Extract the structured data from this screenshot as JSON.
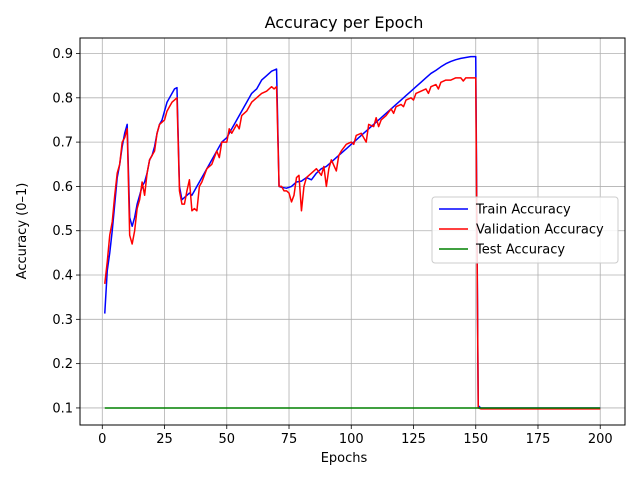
{
  "chart_data": {
    "type": "line",
    "title": "Accuracy per Epoch",
    "xlabel": "Epochs",
    "ylabel": "Accuracy (0–1)",
    "xlim": [
      -8.95,
      209.95
    ],
    "ylim": [
      0.0615,
      0.935
    ],
    "xticks": [
      0,
      25,
      50,
      75,
      100,
      125,
      150,
      175,
      200
    ],
    "yticks": [
      0.1,
      0.2,
      0.3,
      0.4,
      0.5,
      0.6,
      0.7,
      0.8,
      0.9
    ],
    "grid": true,
    "legend_position": "center-right",
    "series": [
      {
        "name": "Train Accuracy",
        "color": "#0000ff",
        "points": [
          [
            1,
            0.313
          ],
          [
            2,
            0.41
          ],
          [
            3,
            0.45
          ],
          [
            4,
            0.5
          ],
          [
            5,
            0.56
          ],
          [
            6,
            0.62
          ],
          [
            7,
            0.65
          ],
          [
            8,
            0.69
          ],
          [
            9,
            0.72
          ],
          [
            10,
            0.74
          ],
          [
            11,
            0.53
          ],
          [
            12,
            0.51
          ],
          [
            13,
            0.53
          ],
          [
            14,
            0.56
          ],
          [
            15,
            0.58
          ],
          [
            16,
            0.6
          ],
          [
            17,
            0.61
          ],
          [
            18,
            0.63
          ],
          [
            19,
            0.66
          ],
          [
            20,
            0.67
          ],
          [
            21,
            0.69
          ],
          [
            22,
            0.72
          ],
          [
            23,
            0.74
          ],
          [
            24,
            0.75
          ],
          [
            25,
            0.77
          ],
          [
            26,
            0.79
          ],
          [
            27,
            0.8
          ],
          [
            28,
            0.81
          ],
          [
            29,
            0.82
          ],
          [
            30,
            0.823
          ],
          [
            31,
            0.6
          ],
          [
            32,
            0.57
          ],
          [
            33,
            0.575
          ],
          [
            34,
            0.58
          ],
          [
            35,
            0.585
          ],
          [
            36,
            0.58
          ],
          [
            37,
            0.59
          ],
          [
            38,
            0.6
          ],
          [
            39,
            0.61
          ],
          [
            40,
            0.62
          ],
          [
            42,
            0.64
          ],
          [
            44,
            0.66
          ],
          [
            46,
            0.68
          ],
          [
            48,
            0.7
          ],
          [
            50,
            0.71
          ],
          [
            52,
            0.73
          ],
          [
            54,
            0.75
          ],
          [
            56,
            0.77
          ],
          [
            58,
            0.79
          ],
          [
            60,
            0.81
          ],
          [
            62,
            0.82
          ],
          [
            64,
            0.84
          ],
          [
            66,
            0.85
          ],
          [
            68,
            0.86
          ],
          [
            70,
            0.865
          ],
          [
            71,
            0.6
          ],
          [
            72,
            0.598
          ],
          [
            74,
            0.596
          ],
          [
            76,
            0.6
          ],
          [
            78,
            0.61
          ],
          [
            80,
            0.612
          ],
          [
            82,
            0.62
          ],
          [
            84,
            0.615
          ],
          [
            86,
            0.63
          ],
          [
            88,
            0.64
          ],
          [
            90,
            0.645
          ],
          [
            92,
            0.655
          ],
          [
            94,
            0.665
          ],
          [
            96,
            0.675
          ],
          [
            98,
            0.685
          ],
          [
            100,
            0.695
          ],
          [
            102,
            0.705
          ],
          [
            104,
            0.715
          ],
          [
            106,
            0.725
          ],
          [
            108,
            0.735
          ],
          [
            110,
            0.745
          ],
          [
            112,
            0.755
          ],
          [
            114,
            0.765
          ],
          [
            116,
            0.775
          ],
          [
            118,
            0.785
          ],
          [
            120,
            0.795
          ],
          [
            122,
            0.805
          ],
          [
            124,
            0.815
          ],
          [
            126,
            0.825
          ],
          [
            128,
            0.835
          ],
          [
            130,
            0.845
          ],
          [
            132,
            0.855
          ],
          [
            134,
            0.862
          ],
          [
            136,
            0.87
          ],
          [
            138,
            0.877
          ],
          [
            140,
            0.882
          ],
          [
            142,
            0.886
          ],
          [
            144,
            0.889
          ],
          [
            146,
            0.891
          ],
          [
            148,
            0.893
          ],
          [
            150,
            0.893
          ],
          [
            151,
            0.105
          ],
          [
            152,
            0.1
          ],
          [
            200,
            0.1
          ]
        ]
      },
      {
        "name": "Validation Accuracy",
        "color": "#ff0000",
        "points": [
          [
            1,
            0.38
          ],
          [
            2,
            0.43
          ],
          [
            3,
            0.49
          ],
          [
            4,
            0.52
          ],
          [
            5,
            0.58
          ],
          [
            6,
            0.63
          ],
          [
            7,
            0.65
          ],
          [
            8,
            0.7
          ],
          [
            9,
            0.71
          ],
          [
            10,
            0.73
          ],
          [
            11,
            0.49
          ],
          [
            12,
            0.47
          ],
          [
            13,
            0.5
          ],
          [
            14,
            0.55
          ],
          [
            15,
            0.57
          ],
          [
            16,
            0.61
          ],
          [
            17,
            0.58
          ],
          [
            18,
            0.63
          ],
          [
            19,
            0.66
          ],
          [
            20,
            0.67
          ],
          [
            21,
            0.68
          ],
          [
            22,
            0.72
          ],
          [
            23,
            0.74
          ],
          [
            24,
            0.745
          ],
          [
            25,
            0.75
          ],
          [
            26,
            0.77
          ],
          [
            27,
            0.78
          ],
          [
            28,
            0.79
          ],
          [
            29,
            0.795
          ],
          [
            30,
            0.8
          ],
          [
            31,
            0.59
          ],
          [
            32,
            0.56
          ],
          [
            33,
            0.56
          ],
          [
            34,
            0.59
          ],
          [
            35,
            0.615
          ],
          [
            36,
            0.545
          ],
          [
            37,
            0.55
          ],
          [
            38,
            0.545
          ],
          [
            39,
            0.6
          ],
          [
            40,
            0.61
          ],
          [
            42,
            0.64
          ],
          [
            44,
            0.65
          ],
          [
            46,
            0.68
          ],
          [
            47,
            0.665
          ],
          [
            48,
            0.7
          ],
          [
            50,
            0.7
          ],
          [
            51,
            0.73
          ],
          [
            52,
            0.72
          ],
          [
            54,
            0.74
          ],
          [
            55,
            0.73
          ],
          [
            56,
            0.76
          ],
          [
            58,
            0.77
          ],
          [
            60,
            0.79
          ],
          [
            62,
            0.8
          ],
          [
            64,
            0.81
          ],
          [
            66,
            0.815
          ],
          [
            68,
            0.825
          ],
          [
            69,
            0.82
          ],
          [
            70,
            0.825
          ],
          [
            71,
            0.6
          ],
          [
            72,
            0.6
          ],
          [
            73,
            0.59
          ],
          [
            74,
            0.59
          ],
          [
            75,
            0.585
          ],
          [
            76,
            0.565
          ],
          [
            77,
            0.58
          ],
          [
            78,
            0.62
          ],
          [
            79,
            0.625
          ],
          [
            80,
            0.545
          ],
          [
            81,
            0.6
          ],
          [
            82,
            0.62
          ],
          [
            84,
            0.63
          ],
          [
            86,
            0.64
          ],
          [
            88,
            0.625
          ],
          [
            89,
            0.645
          ],
          [
            90,
            0.6
          ],
          [
            91,
            0.64
          ],
          [
            92,
            0.66
          ],
          [
            94,
            0.635
          ],
          [
            95,
            0.67
          ],
          [
            96,
            0.68
          ],
          [
            98,
            0.695
          ],
          [
            100,
            0.7
          ],
          [
            101,
            0.695
          ],
          [
            102,
            0.715
          ],
          [
            104,
            0.72
          ],
          [
            105,
            0.71
          ],
          [
            106,
            0.7
          ],
          [
            107,
            0.74
          ],
          [
            109,
            0.735
          ],
          [
            110,
            0.755
          ],
          [
            111,
            0.735
          ],
          [
            112,
            0.75
          ],
          [
            114,
            0.76
          ],
          [
            116,
            0.775
          ],
          [
            117,
            0.765
          ],
          [
            118,
            0.78
          ],
          [
            120,
            0.785
          ],
          [
            121,
            0.78
          ],
          [
            122,
            0.795
          ],
          [
            124,
            0.8
          ],
          [
            125,
            0.795
          ],
          [
            126,
            0.81
          ],
          [
            128,
            0.815
          ],
          [
            130,
            0.82
          ],
          [
            131,
            0.81
          ],
          [
            132,
            0.825
          ],
          [
            134,
            0.83
          ],
          [
            135,
            0.82
          ],
          [
            136,
            0.835
          ],
          [
            138,
            0.84
          ],
          [
            140,
            0.84
          ],
          [
            142,
            0.845
          ],
          [
            144,
            0.845
          ],
          [
            145,
            0.838
          ],
          [
            146,
            0.845
          ],
          [
            148,
            0.845
          ],
          [
            150,
            0.845
          ],
          [
            151,
            0.1
          ],
          [
            152,
            0.098
          ],
          [
            200,
            0.098
          ]
        ]
      },
      {
        "name": "Test Accuracy",
        "color": "#008000",
        "points": [
          [
            1,
            0.1
          ],
          [
            200,
            0.1
          ]
        ]
      }
    ]
  }
}
